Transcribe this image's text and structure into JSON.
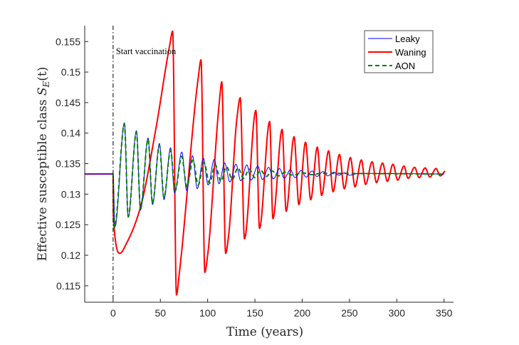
{
  "chart_data": {
    "type": "line",
    "title": "",
    "xlabel": "Time (years)",
    "ylabel": {
      "text": "Effective susceptible class",
      "math_symbol": "S",
      "math_subscript": "E",
      "math_arg": "(t)"
    },
    "xlim": [
      -30,
      360
    ],
    "ylim": [
      0.1123,
      0.1576
    ],
    "xticks": [
      0,
      50,
      100,
      150,
      200,
      250,
      300,
      350
    ],
    "yticks": [
      0.115,
      0.12,
      0.125,
      0.13,
      0.135,
      0.14,
      0.145,
      0.15,
      0.155
    ],
    "ytick_labels": [
      "0.115",
      "0.12",
      "0.125",
      "0.13",
      "0.135",
      "0.14",
      "0.145",
      "0.15",
      "0.155"
    ],
    "grid": false,
    "legend_position": "top-right",
    "annotation": {
      "text": "Start vaccination",
      "x": 0
    },
    "series": [
      {
        "name": "Leaky",
        "color": "#0000ff",
        "style": "solid",
        "points": [
          [
            -30,
            0.1333
          ],
          [
            0,
            0.1333
          ],
          [
            2,
            0.1247
          ],
          [
            12,
            0.1417
          ],
          [
            16,
            0.1262
          ],
          [
            24.7,
            0.1404
          ],
          [
            29,
            0.1274
          ],
          [
            37,
            0.1392
          ],
          [
            41.7,
            0.1283
          ],
          [
            49,
            0.1383
          ],
          [
            53.8,
            0.1291
          ],
          [
            60.8,
            0.1376
          ],
          [
            65,
            0.1302
          ],
          [
            72.7,
            0.1369
          ],
          [
            77.8,
            0.1306
          ],
          [
            84,
            0.1363
          ],
          [
            89,
            0.1309
          ],
          [
            95.5,
            0.1359
          ],
          [
            100.5,
            0.1315
          ],
          [
            107,
            0.1357
          ],
          [
            112,
            0.1317
          ],
          [
            118,
            0.1351
          ],
          [
            123.5,
            0.132
          ],
          [
            130,
            0.1349
          ],
          [
            135,
            0.1322
          ],
          [
            141.5,
            0.1348
          ],
          [
            146,
            0.1323
          ],
          [
            153,
            0.1346
          ],
          [
            158,
            0.1324
          ],
          [
            164.5,
            0.1344
          ],
          [
            169.5,
            0.1325
          ],
          [
            176,
            0.1342
          ],
          [
            181,
            0.1326
          ],
          [
            187.5,
            0.134
          ],
          [
            192.5,
            0.1327
          ],
          [
            199,
            0.1339
          ],
          [
            204,
            0.1328
          ],
          [
            210.5,
            0.1338
          ],
          [
            215.5,
            0.1329
          ],
          [
            222,
            0.1337
          ],
          [
            227,
            0.133
          ],
          [
            233.5,
            0.1336
          ],
          [
            238.5,
            0.1331
          ],
          [
            245,
            0.1335
          ],
          [
            250,
            0.1331
          ],
          [
            260,
            0.1334
          ],
          [
            350,
            0.1333
          ]
        ]
      },
      {
        "name": "Waning",
        "color": "#ff0000",
        "style": "solid",
        "points": [
          [
            -30,
            0.1333
          ],
          [
            0,
            0.1333
          ],
          [
            0.3,
            0.1262
          ],
          [
            7,
            0.1203
          ],
          [
            15,
            0.1222
          ],
          [
            28.5,
            0.1276
          ],
          [
            45,
            0.1405
          ],
          [
            60,
            0.1545
          ],
          [
            63,
            0.1567
          ],
          [
            67,
            0.1135
          ],
          [
            70,
            0.117
          ],
          [
            90,
            0.149
          ],
          [
            93,
            0.152
          ],
          [
            97,
            0.1172
          ],
          [
            100,
            0.12
          ],
          [
            112,
            0.1445
          ],
          [
            115,
            0.1484
          ],
          [
            119,
            0.1203
          ],
          [
            122,
            0.123
          ],
          [
            131,
            0.1425
          ],
          [
            134.5,
            0.1458
          ],
          [
            138.9,
            0.1227
          ],
          [
            151,
            0.1437
          ],
          [
            154.8,
            0.1244
          ],
          [
            165.6,
            0.1419
          ],
          [
            169,
            0.126
          ],
          [
            178.8,
            0.1406
          ],
          [
            183,
            0.1272
          ],
          [
            191.4,
            0.1394
          ],
          [
            196.5,
            0.1283
          ],
          [
            203.5,
            0.1385
          ],
          [
            209,
            0.1291
          ],
          [
            216,
            0.1377
          ],
          [
            220.5,
            0.1298
          ],
          [
            228,
            0.1371
          ],
          [
            232.6,
            0.1304
          ],
          [
            239.4,
            0.1365
          ],
          [
            244.5,
            0.1309
          ],
          [
            251,
            0.136
          ],
          [
            255.8,
            0.1312
          ],
          [
            262.6,
            0.1356
          ],
          [
            267,
            0.1316
          ],
          [
            274,
            0.1353
          ],
          [
            278.5,
            0.1319
          ],
          [
            285,
            0.1351
          ],
          [
            290,
            0.1321
          ],
          [
            296,
            0.1349
          ],
          [
            301,
            0.1323
          ],
          [
            307.6,
            0.1346
          ],
          [
            312,
            0.1326
          ],
          [
            318.9,
            0.1344
          ],
          [
            323.6,
            0.1327
          ],
          [
            330,
            0.1343
          ],
          [
            335,
            0.1328
          ],
          [
            341.5,
            0.1342
          ],
          [
            346,
            0.133
          ],
          [
            351,
            0.1338
          ]
        ]
      },
      {
        "name": "AON",
        "color": "#008000",
        "style": "dashed",
        "points": [
          [
            0,
            0.1333
          ],
          [
            1.5,
            0.1245
          ],
          [
            12,
            0.1415
          ],
          [
            16,
            0.1263
          ],
          [
            24.7,
            0.1402
          ],
          [
            29,
            0.1276
          ],
          [
            37,
            0.139
          ],
          [
            41.7,
            0.1285
          ],
          [
            49,
            0.138
          ],
          [
            53.8,
            0.1294
          ],
          [
            60.8,
            0.1372
          ],
          [
            65.5,
            0.1305
          ],
          [
            72.5,
            0.1362
          ],
          [
            78,
            0.1312
          ],
          [
            84.5,
            0.1356
          ],
          [
            90,
            0.1315
          ],
          [
            96,
            0.1352
          ],
          [
            102,
            0.1318
          ],
          [
            108,
            0.1348
          ],
          [
            114,
            0.1321
          ],
          [
            120,
            0.1345
          ],
          [
            126,
            0.1324
          ],
          [
            132,
            0.1343
          ],
          [
            138,
            0.1326
          ],
          [
            144,
            0.1341
          ],
          [
            150,
            0.1327
          ],
          [
            156,
            0.1339
          ],
          [
            162,
            0.1329
          ],
          [
            168,
            0.1338
          ],
          [
            175,
            0.133
          ],
          [
            182,
            0.1336
          ],
          [
            190,
            0.1331
          ],
          [
            200,
            0.1335
          ],
          [
            210,
            0.1332
          ],
          [
            220,
            0.1334
          ],
          [
            350,
            0.1333
          ]
        ]
      }
    ]
  }
}
